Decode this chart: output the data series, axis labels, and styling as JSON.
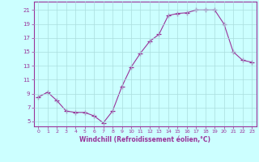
{
  "x": [
    0,
    1,
    2,
    3,
    4,
    5,
    6,
    7,
    8,
    9,
    10,
    11,
    12,
    13,
    14,
    15,
    16,
    17,
    18,
    19,
    20,
    21,
    22,
    23
  ],
  "y": [
    8.5,
    9.2,
    8.0,
    6.5,
    6.3,
    6.3,
    5.8,
    4.8,
    6.5,
    10.0,
    12.8,
    14.8,
    16.5,
    17.5,
    20.2,
    20.5,
    20.6,
    21.0,
    21.0,
    21.0,
    19.0,
    15.0,
    13.8,
    13.5
  ],
  "line_color": "#993399",
  "marker": "+",
  "marker_size": 4,
  "xlabel": "Windchill (Refroidissement éolien,°C)",
  "ylabel_ticks": [
    5,
    7,
    9,
    11,
    13,
    15,
    17,
    19,
    21
  ],
  "xlim": [
    -0.5,
    23.5
  ],
  "ylim": [
    4.3,
    22.2
  ],
  "bg_color": "#ccffff",
  "grid_color": "#aadddd",
  "tick_color": "#993399",
  "label_color": "#993399",
  "spine_color": "#993399"
}
